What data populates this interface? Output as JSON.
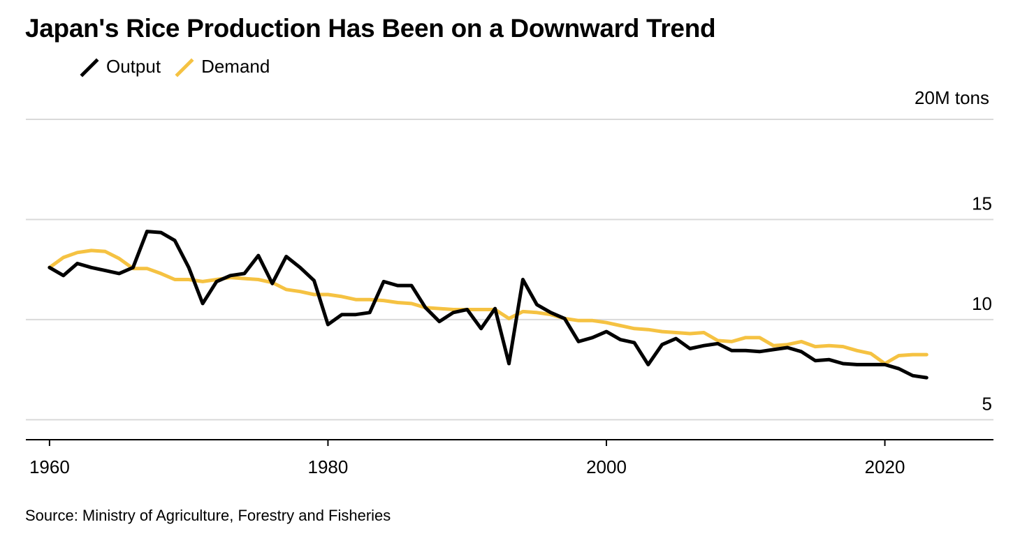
{
  "title": "Japan's Rice Production Has Been on a Downward Trend",
  "source": "Source: Ministry of Agriculture, Forestry and Fisheries",
  "chart_data": {
    "type": "line",
    "unit_label": "20M tons",
    "ylim": [
      4,
      20
    ],
    "xlim": [
      1958.3,
      2027.8
    ],
    "y_ticks": [
      5,
      10,
      15,
      20
    ],
    "y_tick_labels": [
      "5",
      "10",
      "15",
      "20M tons"
    ],
    "x_ticks": [
      1960,
      1980,
      2000,
      2020
    ],
    "x_tick_labels": [
      "1960",
      "1980",
      "2000",
      "2020"
    ],
    "grid": true,
    "legend_position": "top-left",
    "colors": {
      "output": "#000000",
      "demand": "#f5c242",
      "grid": "#d9d9d9",
      "axis": "#000000"
    },
    "series": [
      {
        "name": "Output",
        "color": "#000000",
        "x": [
          1960,
          1961,
          1962,
          1963,
          1964,
          1965,
          1966,
          1967,
          1968,
          1969,
          1970,
          1971,
          1972,
          1973,
          1974,
          1975,
          1976,
          1977,
          1978,
          1979,
          1980,
          1981,
          1982,
          1983,
          1984,
          1985,
          1986,
          1987,
          1988,
          1989,
          1990,
          1991,
          1992,
          1993,
          1994,
          1995,
          1996,
          1997,
          1998,
          1999,
          2000,
          2001,
          2002,
          2003,
          2004,
          2005,
          2006,
          2007,
          2008,
          2009,
          2010,
          2011,
          2012,
          2013,
          2014,
          2015,
          2016,
          2017,
          2018,
          2019,
          2020,
          2021,
          2022,
          2023
        ],
        "y": [
          12.6,
          12.2,
          12.8,
          12.6,
          12.45,
          12.3,
          12.6,
          14.4,
          14.35,
          13.95,
          12.6,
          10.8,
          11.9,
          12.2,
          12.3,
          13.2,
          11.8,
          13.15,
          12.6,
          11.95,
          9.75,
          10.25,
          10.25,
          10.35,
          11.9,
          11.7,
          11.7,
          10.6,
          9.9,
          10.35,
          10.5,
          9.55,
          10.55,
          7.8,
          12.0,
          10.75,
          10.35,
          10.05,
          8.9,
          9.1,
          9.4,
          9.0,
          8.85,
          7.75,
          8.75,
          9.05,
          8.55,
          8.7,
          8.8,
          8.45,
          8.45,
          8.4,
          8.5,
          8.6,
          8.4,
          7.95,
          8.0,
          7.8,
          7.75,
          7.75,
          7.75,
          7.55,
          7.2,
          7.1
        ]
      },
      {
        "name": "Demand",
        "color": "#f5c242",
        "x": [
          1960,
          1961,
          1962,
          1963,
          1964,
          1965,
          1966,
          1967,
          1968,
          1969,
          1970,
          1971,
          1972,
          1973,
          1974,
          1975,
          1976,
          1977,
          1978,
          1979,
          1980,
          1981,
          1982,
          1983,
          1984,
          1985,
          1986,
          1987,
          1988,
          1989,
          1990,
          1991,
          1992,
          1993,
          1994,
          1995,
          1996,
          1997,
          1998,
          1999,
          2000,
          2001,
          2002,
          2003,
          2004,
          2005,
          2006,
          2007,
          2008,
          2009,
          2010,
          2011,
          2012,
          2013,
          2014,
          2015,
          2016,
          2017,
          2018,
          2019,
          2020,
          2021,
          2022,
          2023
        ],
        "y": [
          12.6,
          13.1,
          13.35,
          13.45,
          13.4,
          13.05,
          12.55,
          12.55,
          12.3,
          12.0,
          12.0,
          11.9,
          12.0,
          12.1,
          12.05,
          12.0,
          11.85,
          11.5,
          11.4,
          11.25,
          11.25,
          11.15,
          11.0,
          11.0,
          10.95,
          10.85,
          10.8,
          10.6,
          10.55,
          10.5,
          10.5,
          10.5,
          10.5,
          10.05,
          10.4,
          10.35,
          10.25,
          10.05,
          9.95,
          9.95,
          9.85,
          9.7,
          9.55,
          9.5,
          9.4,
          9.35,
          9.3,
          9.35,
          8.95,
          8.9,
          9.1,
          9.1,
          8.7,
          8.75,
          8.9,
          8.65,
          8.7,
          8.65,
          8.45,
          8.3,
          7.8,
          8.2,
          8.25,
          8.25
        ]
      }
    ]
  }
}
